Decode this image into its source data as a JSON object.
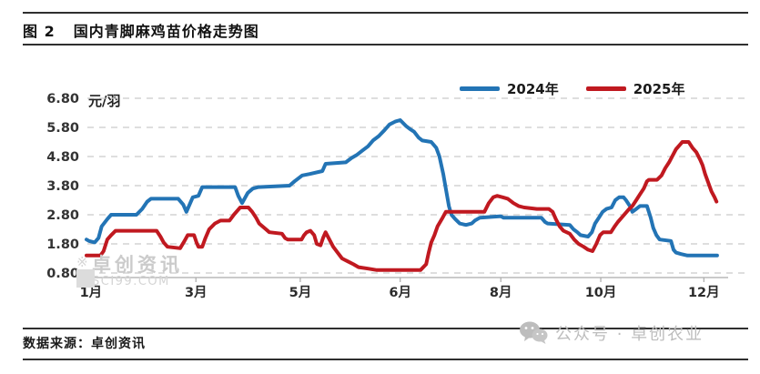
{
  "header": {
    "figure_label": "图 2",
    "title": "国内青脚麻鸡苗价格走势图"
  },
  "footer": {
    "source_label": "数据来源：卓创资讯",
    "wechat_watermark": "公众号 · 卓创农业"
  },
  "watermark": {
    "brand": "卓创资讯",
    "domain": "SCI99.COM"
  },
  "chart_data": {
    "type": "line",
    "title": "国内青脚麻鸡苗价格走势图",
    "unit_label": "元/羽",
    "ylabel": "元/羽",
    "ylim": [
      0.8,
      6.8
    ],
    "y_ticks": [
      "6.80",
      "5.80",
      "4.80",
      "3.80",
      "2.80",
      "1.80",
      "0.80"
    ],
    "grid": "dashed-horizontal",
    "legend_position": "top-right",
    "x_ticks": [
      {
        "label": "1月",
        "t": 0.7
      },
      {
        "label": "3月",
        "t": 17.3
      },
      {
        "label": "5月",
        "t": 33.8
      },
      {
        "label": "6月",
        "t": 49.6
      },
      {
        "label": "8月",
        "t": 65.5
      },
      {
        "label": "10月",
        "t": 81.3
      },
      {
        "label": "12月",
        "t": 97.6
      }
    ],
    "series": [
      {
        "name": "2024年",
        "color": "#2374B5",
        "points": [
          [
            0,
            1.95
          ],
          [
            0.4,
            1.9
          ],
          [
            1.3,
            1.85
          ],
          [
            1.9,
            2.0
          ],
          [
            2.4,
            2.4
          ],
          [
            3.3,
            2.65
          ],
          [
            3.9,
            2.8
          ],
          [
            7.9,
            2.8
          ],
          [
            8.8,
            3.0
          ],
          [
            9.6,
            3.25
          ],
          [
            10.2,
            3.35
          ],
          [
            14.5,
            3.35
          ],
          [
            15.3,
            3.15
          ],
          [
            15.8,
            2.9
          ],
          [
            16.4,
            3.2
          ],
          [
            16.8,
            3.4
          ],
          [
            17.7,
            3.45
          ],
          [
            18.3,
            3.75
          ],
          [
            23.5,
            3.75
          ],
          [
            24,
            3.45
          ],
          [
            24.6,
            3.2
          ],
          [
            25.5,
            3.55
          ],
          [
            26.3,
            3.7
          ],
          [
            27.2,
            3.75
          ],
          [
            32.1,
            3.8
          ],
          [
            32.9,
            3.95
          ],
          [
            34.1,
            4.15
          ],
          [
            35.3,
            4.2
          ],
          [
            37.3,
            4.3
          ],
          [
            37.8,
            4.55
          ],
          [
            41,
            4.6
          ],
          [
            41.9,
            4.75
          ],
          [
            42.7,
            4.85
          ],
          [
            43.6,
            5.0
          ],
          [
            44.5,
            5.15
          ],
          [
            45.3,
            5.35
          ],
          [
            46.2,
            5.5
          ],
          [
            47.1,
            5.7
          ],
          [
            47.9,
            5.9
          ],
          [
            48.8,
            6.0
          ],
          [
            49.6,
            6.05
          ],
          [
            50.5,
            5.85
          ],
          [
            51.1,
            5.75
          ],
          [
            51.8,
            5.65
          ],
          [
            52.5,
            5.45
          ],
          [
            53.1,
            5.35
          ],
          [
            54.5,
            5.3
          ],
          [
            55.3,
            5.1
          ],
          [
            55.8,
            4.8
          ],
          [
            56.4,
            4.2
          ],
          [
            56.8,
            3.7
          ],
          [
            57.3,
            3.1
          ],
          [
            57.7,
            2.8
          ],
          [
            58.3,
            2.65
          ],
          [
            59,
            2.5
          ],
          [
            60,
            2.45
          ],
          [
            60.9,
            2.5
          ],
          [
            61.4,
            2.6
          ],
          [
            62.2,
            2.7
          ],
          [
            65.5,
            2.75
          ],
          [
            65.9,
            2.7
          ],
          [
            71.9,
            2.7
          ],
          [
            72.5,
            2.55
          ],
          [
            72.9,
            2.5
          ],
          [
            76.4,
            2.45
          ],
          [
            77,
            2.3
          ],
          [
            77.6,
            2.2
          ],
          [
            78.1,
            2.1
          ],
          [
            79.3,
            2.05
          ],
          [
            79.9,
            2.2
          ],
          [
            80.4,
            2.5
          ],
          [
            81,
            2.7
          ],
          [
            81.6,
            2.9
          ],
          [
            82.2,
            3.0
          ],
          [
            83,
            3.05
          ],
          [
            83.6,
            3.3
          ],
          [
            84.2,
            3.4
          ],
          [
            84.9,
            3.4
          ],
          [
            85.3,
            3.3
          ],
          [
            85.9,
            3.1
          ],
          [
            86.3,
            2.9
          ],
          [
            86.9,
            3.0
          ],
          [
            87.5,
            3.1
          ],
          [
            88.6,
            3.1
          ],
          [
            89.2,
            2.7
          ],
          [
            89.6,
            2.35
          ],
          [
            90.1,
            2.1
          ],
          [
            90.6,
            1.95
          ],
          [
            92.4,
            1.9
          ],
          [
            92.8,
            1.6
          ],
          [
            93.2,
            1.5
          ],
          [
            94,
            1.45
          ],
          [
            95,
            1.4
          ],
          [
            99.7,
            1.4
          ]
        ]
      },
      {
        "name": "2025年",
        "color": "#C01920",
        "points": [
          [
            0,
            1.4
          ],
          [
            2.2,
            1.4
          ],
          [
            2.7,
            1.55
          ],
          [
            3.3,
            1.95
          ],
          [
            3.9,
            2.1
          ],
          [
            4.6,
            2.25
          ],
          [
            11.1,
            2.25
          ],
          [
            11.7,
            2.05
          ],
          [
            12.2,
            1.85
          ],
          [
            12.8,
            1.7
          ],
          [
            14.8,
            1.65
          ],
          [
            15.5,
            1.9
          ],
          [
            16,
            2.1
          ],
          [
            17,
            2.1
          ],
          [
            17.4,
            1.85
          ],
          [
            17.7,
            1.7
          ],
          [
            18.3,
            1.7
          ],
          [
            18.8,
            2.0
          ],
          [
            19.4,
            2.3
          ],
          [
            20.3,
            2.5
          ],
          [
            21.2,
            2.6
          ],
          [
            22.6,
            2.6
          ],
          [
            23.3,
            2.8
          ],
          [
            23.9,
            2.95
          ],
          [
            24.3,
            3.05
          ],
          [
            25.6,
            3.05
          ],
          [
            26.2,
            2.9
          ],
          [
            26.8,
            2.7
          ],
          [
            27.3,
            2.5
          ],
          [
            28.1,
            2.35
          ],
          [
            28.9,
            2.2
          ],
          [
            30.9,
            2.15
          ],
          [
            31.4,
            2.0
          ],
          [
            31.8,
            1.95
          ],
          [
            34,
            1.95
          ],
          [
            34.4,
            2.1
          ],
          [
            34.8,
            2.2
          ],
          [
            35.4,
            2.25
          ],
          [
            36,
            2.1
          ],
          [
            36.4,
            1.8
          ],
          [
            37,
            1.75
          ],
          [
            37.4,
            2.0
          ],
          [
            37.8,
            2.2
          ],
          [
            38.4,
            1.95
          ],
          [
            39,
            1.7
          ],
          [
            39.7,
            1.5
          ],
          [
            40.4,
            1.3
          ],
          [
            41.3,
            1.2
          ],
          [
            42.2,
            1.1
          ],
          [
            43,
            1.0
          ],
          [
            44.5,
            0.95
          ],
          [
            45.9,
            0.9
          ],
          [
            52.8,
            0.9
          ],
          [
            53.7,
            1.1
          ],
          [
            54.1,
            1.5
          ],
          [
            54.5,
            1.85
          ],
          [
            55,
            2.1
          ],
          [
            55.5,
            2.4
          ],
          [
            56.3,
            2.7
          ],
          [
            56.8,
            2.9
          ],
          [
            62.9,
            2.9
          ],
          [
            63.6,
            3.2
          ],
          [
            64.3,
            3.4
          ],
          [
            64.9,
            3.45
          ],
          [
            65.8,
            3.4
          ],
          [
            66.6,
            3.35
          ],
          [
            67.5,
            3.2
          ],
          [
            68.3,
            3.1
          ],
          [
            69.2,
            3.05
          ],
          [
            71.2,
            3.0
          ],
          [
            73.1,
            3.0
          ],
          [
            73.7,
            2.9
          ],
          [
            74.2,
            2.65
          ],
          [
            74.8,
            2.4
          ],
          [
            75.4,
            2.25
          ],
          [
            76.4,
            2.15
          ],
          [
            77.1,
            1.95
          ],
          [
            77.8,
            1.8
          ],
          [
            78.6,
            1.7
          ],
          [
            79.3,
            1.6
          ],
          [
            80,
            1.55
          ],
          [
            80.6,
            1.8
          ],
          [
            81.2,
            2.1
          ],
          [
            81.7,
            2.2
          ],
          [
            82.9,
            2.2
          ],
          [
            83.5,
            2.4
          ],
          [
            84,
            2.55
          ],
          [
            84.6,
            2.7
          ],
          [
            85.2,
            2.85
          ],
          [
            85.8,
            3.0
          ],
          [
            86.3,
            3.1
          ],
          [
            86.9,
            3.3
          ],
          [
            87.5,
            3.5
          ],
          [
            88.1,
            3.7
          ],
          [
            88.6,
            3.95
          ],
          [
            88.9,
            4.0
          ],
          [
            90.2,
            4.0
          ],
          [
            90.9,
            4.15
          ],
          [
            91.5,
            4.4
          ],
          [
            92.1,
            4.6
          ],
          [
            92.7,
            4.85
          ],
          [
            93.2,
            5.05
          ],
          [
            93.8,
            5.2
          ],
          [
            94.2,
            5.3
          ],
          [
            95.2,
            5.3
          ],
          [
            95.8,
            5.1
          ],
          [
            96.4,
            4.95
          ],
          [
            97,
            4.7
          ],
          [
            97.4,
            4.5
          ],
          [
            97.8,
            4.2
          ],
          [
            98.3,
            3.9
          ],
          [
            98.8,
            3.6
          ],
          [
            99.3,
            3.4
          ],
          [
            99.6,
            3.25
          ]
        ]
      }
    ]
  }
}
